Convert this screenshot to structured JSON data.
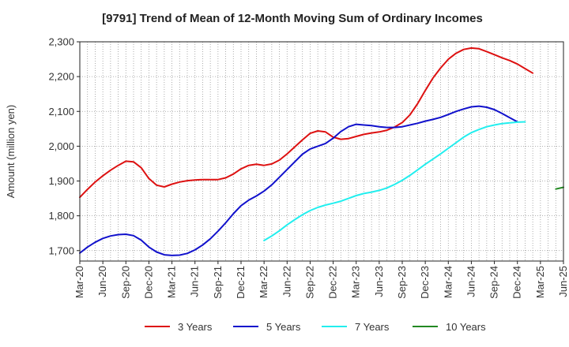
{
  "chart_data": {
    "type": "line",
    "title": "[9791]  Trend of Mean of 12-Month Moving Sum of Ordinary Incomes",
    "xlabel": "",
    "ylabel": "Amount (million yen)",
    "ylim": [
      1670,
      2300
    ],
    "yticks": [
      1700,
      1800,
      1900,
      2000,
      2100,
      2200,
      2300
    ],
    "ytick_labels": [
      "1,700",
      "1,800",
      "1,900",
      "2,000",
      "2,100",
      "2,200",
      "2,300"
    ],
    "x_start": "Mar-20",
    "x_count": 64,
    "xtick_labels": [
      "Mar-20",
      "Jun-20",
      "Sep-20",
      "Dec-20",
      "Mar-21",
      "Jun-21",
      "Sep-21",
      "Dec-21",
      "Mar-22",
      "Jun-22",
      "Sep-22",
      "Dec-22",
      "Mar-23",
      "Jun-23",
      "Sep-23",
      "Dec-23",
      "Mar-24",
      "Jun-24",
      "Sep-24",
      "Dec-24",
      "Mar-25",
      "Jun-25"
    ],
    "grid": true,
    "legend_position": "bottom",
    "series": [
      {
        "name": "3 Years",
        "color": "#dd1111",
        "start_index": 0,
        "values": [
          1853,
          1876,
          1897,
          1915,
          1931,
          1945,
          1957,
          1955,
          1938,
          1907,
          1888,
          1883,
          1891,
          1897,
          1901,
          1903,
          1904,
          1904,
          1904,
          1909,
          1920,
          1935,
          1945,
          1948,
          1945,
          1949,
          1960,
          1978,
          1998,
          2018,
          2037,
          2044,
          2041,
          2026,
          2020,
          2022,
          2028,
          2034,
          2038,
          2041,
          2046,
          2055,
          2068,
          2090,
          2122,
          2160,
          2196,
          2225,
          2250,
          2267,
          2278,
          2282,
          2280,
          2272,
          2263,
          2254,
          2246,
          2236,
          2223,
          2210
        ]
      },
      {
        "name": "5 Years",
        "color": "#1111cc",
        "start_index": 0,
        "values": [
          1693,
          1710,
          1724,
          1735,
          1742,
          1746,
          1747,
          1743,
          1730,
          1710,
          1696,
          1688,
          1686,
          1687,
          1692,
          1702,
          1716,
          1734,
          1756,
          1780,
          1806,
          1829,
          1845,
          1857,
          1871,
          1889,
          1911,
          1933,
          1955,
          1977,
          1992,
          2000,
          2008,
          2023,
          2042,
          2056,
          2063,
          2061,
          2059,
          2056,
          2054,
          2054,
          2056,
          2061,
          2066,
          2072,
          2077,
          2083,
          2091,
          2100,
          2107,
          2113,
          2115,
          2112,
          2105,
          2094,
          2082,
          2070
        ]
      },
      {
        "name": "7 Years",
        "color": "#22eeee",
        "start_index": 24,
        "values": [
          1729,
          1742,
          1757,
          1774,
          1789,
          1803,
          1815,
          1824,
          1831,
          1836,
          1842,
          1850,
          1858,
          1864,
          1868,
          1873,
          1880,
          1890,
          1902,
          1916,
          1932,
          1948,
          1963,
          1978,
          1994,
          2010,
          2026,
          2039,
          2048,
          2056,
          2061,
          2065,
          2067,
          2069,
          2070
        ]
      },
      {
        "name": "10 Years",
        "color": "#228822",
        "start_index": 62,
        "values": [
          1877,
          1882
        ]
      }
    ]
  }
}
